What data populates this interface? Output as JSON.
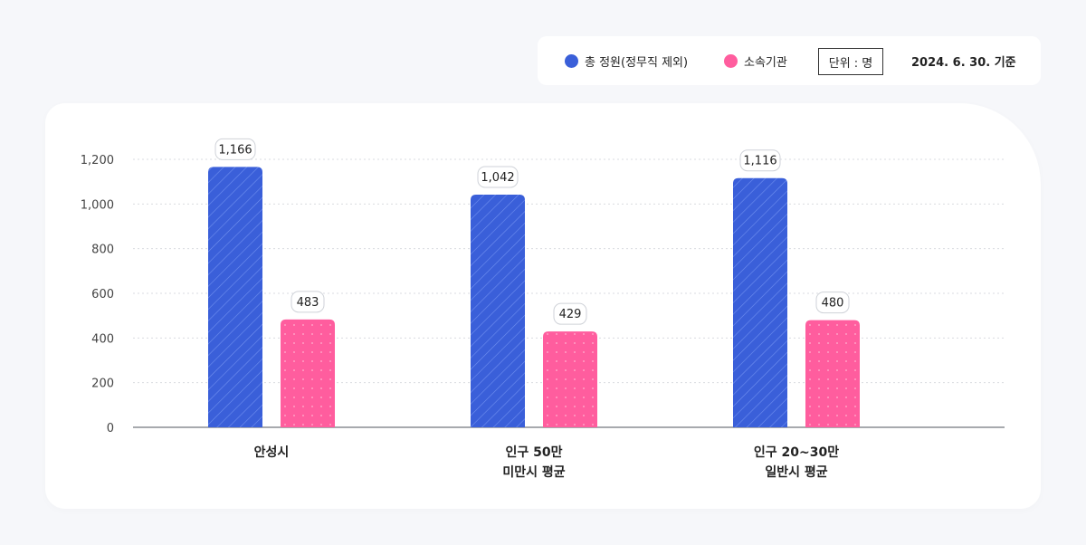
{
  "legend": {
    "items": [
      {
        "label": "총 정원(정무직 제외)",
        "color": "#3a5fd9"
      },
      {
        "label": "소속기관",
        "color": "#ff5d9e"
      }
    ],
    "unit_label": "단위 : 명",
    "date_label": "2024. 6. 30. 기준"
  },
  "chart_data": {
    "type": "bar",
    "categories": [
      [
        "안성시"
      ],
      [
        "인구 50만",
        "미만시 평균"
      ],
      [
        "인구 20~30만",
        "일반시 평균"
      ]
    ],
    "series": [
      {
        "name": "총 정원(정무직 제외)",
        "values": [
          1166,
          1042,
          1116
        ],
        "labels": [
          "1,166",
          "1,042",
          "1,116"
        ],
        "color": "#3a5fd9"
      },
      {
        "name": "소속기관",
        "values": [
          483,
          429,
          480
        ],
        "labels": [
          "483",
          "429",
          "480"
        ],
        "color": "#ff5d9e"
      }
    ],
    "ylim": [
      0,
      1200
    ],
    "yticks": [
      0,
      200,
      400,
      600,
      800,
      1000,
      1200
    ],
    "ytick_labels": [
      "0",
      "200",
      "400",
      "600",
      "800",
      "1,000",
      "1,200"
    ],
    "grid": true
  }
}
